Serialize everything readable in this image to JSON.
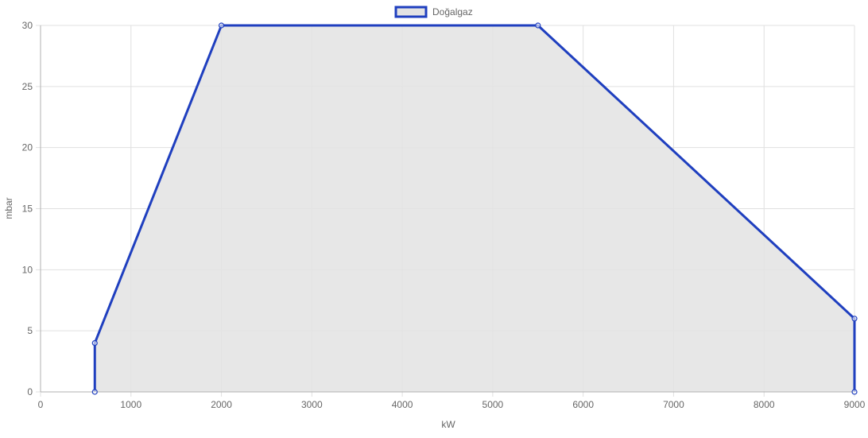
{
  "chart_data": {
    "type": "area",
    "title": "",
    "xlabel": "kW",
    "ylabel": "mbar",
    "xlim": [
      0,
      9000
    ],
    "ylim": [
      0,
      30
    ],
    "x_ticks": [
      0,
      1000,
      2000,
      3000,
      4000,
      5000,
      6000,
      7000,
      8000,
      9000
    ],
    "y_ticks": [
      0,
      5,
      10,
      15,
      20,
      25,
      30
    ],
    "grid": true,
    "legend_position": "top",
    "series": [
      {
        "name": "Doğalgaz",
        "line_color": "#1f3fbf",
        "fill_color": "#e3e3e3",
        "points": [
          {
            "x": 600,
            "y": 0
          },
          {
            "x": 600,
            "y": 4
          },
          {
            "x": 2000,
            "y": 30
          },
          {
            "x": 5500,
            "y": 30
          },
          {
            "x": 9000,
            "y": 6
          },
          {
            "x": 9000,
            "y": 0
          }
        ]
      }
    ]
  }
}
